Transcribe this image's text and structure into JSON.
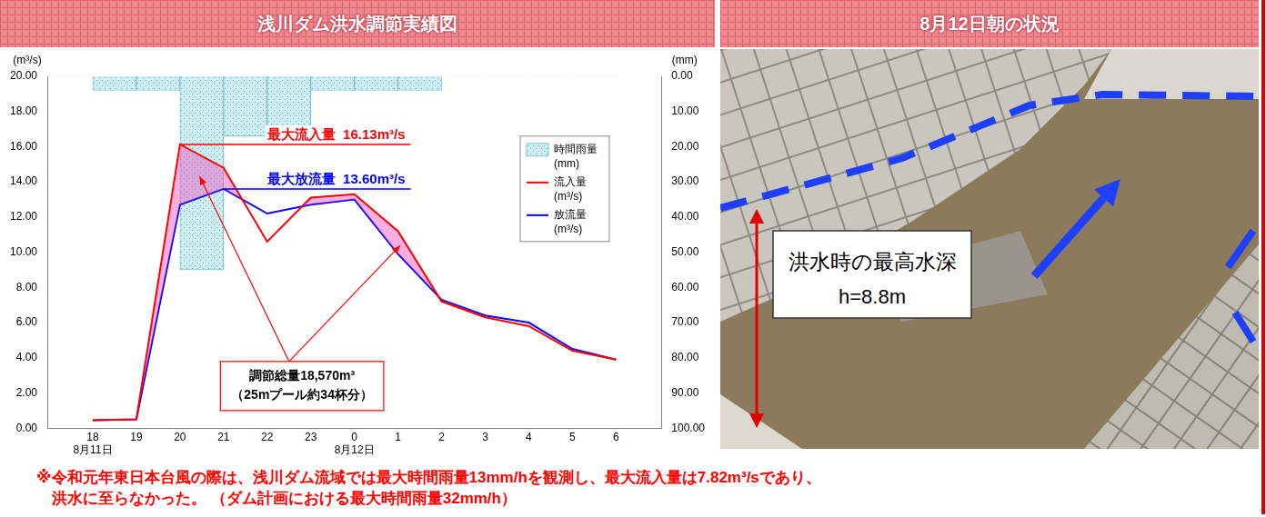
{
  "chart_data": {
    "type": "line",
    "title": "浅川ダム洪水調節実績図",
    "categories": [
      "18",
      "19",
      "20",
      "21",
      "22",
      "23",
      "0",
      "1",
      "2",
      "3",
      "4",
      "5",
      "6"
    ],
    "x_date_labels": [
      "8月11日",
      null,
      null,
      null,
      null,
      null,
      "8月12日",
      null,
      null,
      null,
      null,
      null,
      null
    ],
    "y_unit": "(m³/s)",
    "y2_unit": "(mm)",
    "ylim": [
      0,
      20
    ],
    "yticks": [
      {
        "value": 0,
        "label": "0.00"
      },
      {
        "value": 2,
        "label": "2.00"
      },
      {
        "value": 4,
        "label": "4.00"
      },
      {
        "value": 6,
        "label": "6.00"
      },
      {
        "value": 8,
        "label": "8.00"
      },
      {
        "value": 10,
        "label": "10.00"
      },
      {
        "value": 12,
        "label": "12.00"
      },
      {
        "value": 14,
        "label": "14.00"
      },
      {
        "value": 16,
        "label": "16.00"
      },
      {
        "value": 18,
        "label": "18.00"
      },
      {
        "value": 20,
        "label": "20.00"
      }
    ],
    "y2lim": [
      100,
      0
    ],
    "y2ticks": [
      {
        "value": 0,
        "label": "0.00"
      },
      {
        "value": 10,
        "label": "10.00"
      },
      {
        "value": 20,
        "label": "20.00"
      },
      {
        "value": 30,
        "label": "30.00"
      },
      {
        "value": 40,
        "label": "40.00"
      },
      {
        "value": 50,
        "label": "50.00"
      },
      {
        "value": 60,
        "label": "60.00"
      },
      {
        "value": 70,
        "label": "70.00"
      },
      {
        "value": 80,
        "label": "80.00"
      },
      {
        "value": 90,
        "label": "90.00"
      },
      {
        "value": 100,
        "label": "100.00"
      }
    ],
    "grid": false,
    "legend": "right",
    "series": [
      {
        "name": "時間雨量(mm)",
        "type": "bar",
        "axis": "y2",
        "color": "#cdeef3",
        "values": [
          0,
          4,
          4,
          55,
          17,
          17,
          4,
          4,
          4,
          0,
          0,
          0,
          0
        ]
      },
      {
        "name": "流入量(m³/s)",
        "type": "line",
        "color": "#ff0000",
        "marker": "none",
        "values": [
          0.45,
          0.5,
          16.13,
          14.8,
          10.6,
          13.1,
          13.3,
          11.2,
          7.2,
          6.3,
          5.8,
          4.4,
          3.9
        ]
      },
      {
        "name": "放流量(m³/s)",
        "type": "line",
        "color": "#0000ff",
        "marker": "none",
        "values": [
          0.45,
          0.5,
          12.7,
          13.6,
          12.2,
          12.7,
          13.0,
          9.9,
          7.3,
          6.4,
          6.0,
          4.5,
          3.9
        ]
      }
    ],
    "annotations": [
      {
        "text": "最大流入量  16.13m³/s",
        "value": 16.13,
        "color": "#ff0000"
      },
      {
        "text": "最大放流量  13.60m³/s",
        "value": 13.6,
        "color": "#0000ff"
      }
    ],
    "callout": [
      "調節総量18,570m³",
      "（25mプール約34杯分）"
    ]
  },
  "photo": {
    "title": "8月12日朝の状況",
    "label": [
      "洪水時の最高水深",
      "h=8.8m"
    ]
  },
  "note": [
    "※令和元年東日本台風の際は、浅川ダム流域では最大時間雨量13mm/hを観測し、最大流入量は7.82m³/sであり、",
    "洪水に至らなかった。 （ダム計画における最大時間雨量32mm/h）"
  ]
}
